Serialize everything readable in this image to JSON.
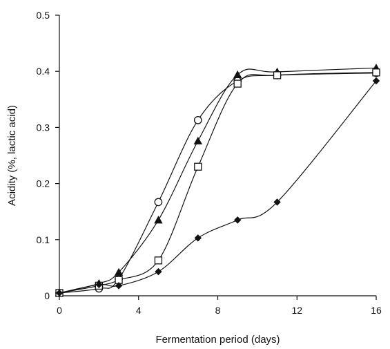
{
  "chart_data": {
    "type": "line",
    "title": "",
    "xlabel": "Fermentation period  (days)",
    "ylabel": "Acidity  (%, lactic acid)",
    "xlim": [
      0,
      16
    ],
    "ylim": [
      0,
      0.5
    ],
    "xticks": [
      0,
      4,
      8,
      12,
      16
    ],
    "yticks": [
      0,
      0.1,
      0.2,
      0.3,
      0.4,
      0.5
    ],
    "xtick_labels": [
      "0",
      "4",
      "8",
      "12",
      "16"
    ],
    "ytick_labels": [
      "0",
      "0.1",
      "0.2",
      "0.3",
      "0.4",
      "0.5"
    ],
    "grid": false,
    "legend": "none",
    "series": [
      {
        "marker": "open-circle",
        "color": "#111111",
        "x": [
          0,
          2,
          3,
          5,
          7,
          9,
          11,
          16
        ],
        "y": [
          0.005,
          0.013,
          0.03,
          0.167,
          0.313,
          0.383,
          0.393,
          0.397
        ]
      },
      {
        "marker": "filled-triangle",
        "color": "#111111",
        "x": [
          0,
          2,
          3,
          5,
          7,
          9,
          11,
          16
        ],
        "y": [
          0.005,
          0.022,
          0.042,
          0.135,
          0.276,
          0.394,
          0.399,
          0.406
        ]
      },
      {
        "marker": "open-square",
        "color": "#111111",
        "x": [
          0,
          2,
          3,
          5,
          7,
          9,
          11,
          16
        ],
        "y": [
          0.005,
          0.018,
          0.028,
          0.063,
          0.23,
          0.378,
          0.393,
          0.398
        ]
      },
      {
        "marker": "filled-diamond",
        "color": "#111111",
        "x": [
          0,
          2,
          3,
          5,
          7,
          9,
          11,
          16
        ],
        "y": [
          0.005,
          0.02,
          0.018,
          0.043,
          0.103,
          0.135,
          0.167,
          0.383
        ]
      }
    ]
  }
}
